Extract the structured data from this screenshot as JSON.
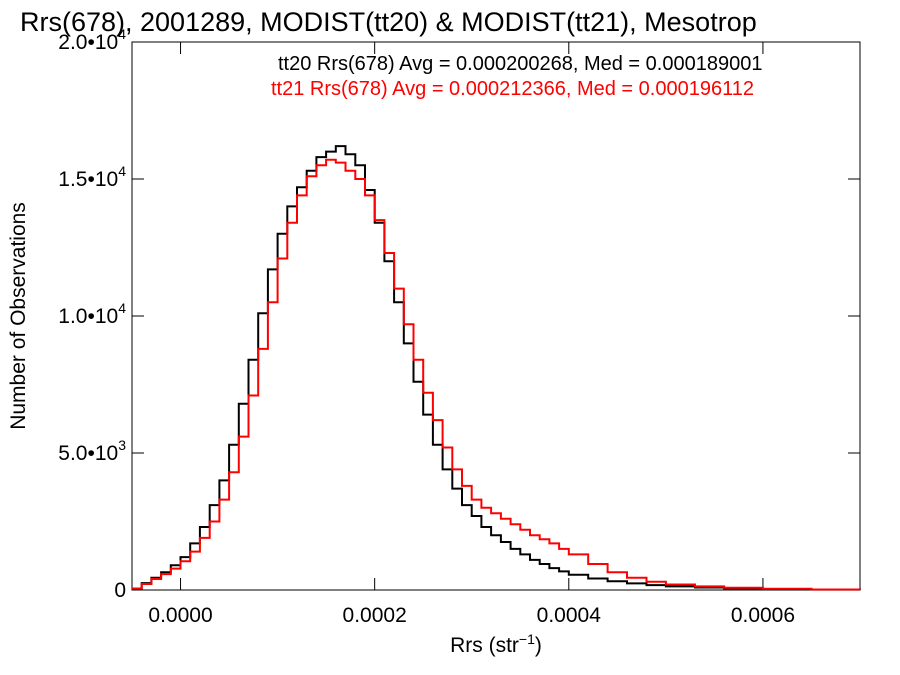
{
  "chart_data": {
    "type": "line",
    "step": true,
    "title": "Rrs(678), 2001289, MODIST(tt20) & MODIST(tt21), Mesotrop",
    "xlabel": "Rrs (str",
    "xlabel_sup": "−1",
    "xlabel_close": ")",
    "ylabel": "Number of Observations",
    "xlim": [
      -5e-05,
      0.0007
    ],
    "ylim": [
      0,
      20000
    ],
    "x_ticks": [
      {
        "value": 0.0,
        "label": "0.0000"
      },
      {
        "value": 0.0002,
        "label": "0.0002"
      },
      {
        "value": 0.0004,
        "label": "0.0004"
      },
      {
        "value": 0.0006,
        "label": "0.0006"
      }
    ],
    "y_ticks": [
      {
        "value": 0,
        "mant": "0",
        "exp": ""
      },
      {
        "value": 5000,
        "mant": "5.0•10",
        "exp": "3"
      },
      {
        "value": 10000,
        "mant": "1.0•10",
        "exp": "4"
      },
      {
        "value": 15000,
        "mant": "1.5•10",
        "exp": "4"
      },
      {
        "value": 20000,
        "mant": "2.0•10",
        "exp": "4"
      }
    ],
    "legend_placement": "top-right",
    "series": [
      {
        "name": "tt20",
        "label": "tt20 Rrs(678) Avg = 0.000200268, Med = 0.000189001",
        "color": "#000000",
        "x": [
          -5e-05,
          -4e-05,
          -3e-05,
          -2e-05,
          -1e-05,
          0.0,
          1e-05,
          2e-05,
          3e-05,
          4e-05,
          5e-05,
          6e-05,
          7e-05,
          8e-05,
          9e-05,
          0.0001,
          0.00011,
          0.00012,
          0.00013,
          0.00014,
          0.00015,
          0.00016,
          0.00017,
          0.00018,
          0.00019,
          0.0002,
          0.00021,
          0.00022,
          0.00023,
          0.00024,
          0.00025,
          0.00026,
          0.00027,
          0.00028,
          0.00029,
          0.0003,
          0.00031,
          0.00032,
          0.00033,
          0.00034,
          0.00035,
          0.00036,
          0.00037,
          0.00038,
          0.00039,
          0.0004,
          0.00042,
          0.00044,
          0.00046,
          0.00048,
          0.0005,
          0.00053,
          0.00056,
          0.0006,
          0.00065,
          0.0007
        ],
        "values": [
          50,
          250,
          450,
          650,
          900,
          1200,
          1700,
          2300,
          3100,
          4000,
          5300,
          6800,
          8400,
          10100,
          11700,
          13000,
          14000,
          14700,
          15300,
          15800,
          16000,
          16200,
          15900,
          15500,
          14600,
          13400,
          12000,
          10500,
          9000,
          7600,
          6400,
          5300,
          4400,
          3700,
          3100,
          2700,
          2300,
          2000,
          1750,
          1500,
          1300,
          1100,
          950,
          800,
          680,
          560,
          420,
          320,
          240,
          180,
          130,
          90,
          60,
          35,
          15,
          5
        ]
      },
      {
        "name": "tt21",
        "label": "tt21 Rrs(678) Avg = 0.000212366, Med = 0.000196112",
        "color": "#ff0000",
        "x": [
          -5e-05,
          -4e-05,
          -3e-05,
          -2e-05,
          -1e-05,
          0.0,
          1e-05,
          2e-05,
          3e-05,
          4e-05,
          5e-05,
          6e-05,
          7e-05,
          8e-05,
          9e-05,
          0.0001,
          0.00011,
          0.00012,
          0.00013,
          0.00014,
          0.00015,
          0.00016,
          0.00017,
          0.00018,
          0.00019,
          0.0002,
          0.00021,
          0.00022,
          0.00023,
          0.00024,
          0.00025,
          0.00026,
          0.00027,
          0.00028,
          0.00029,
          0.0003,
          0.00031,
          0.00032,
          0.00033,
          0.00034,
          0.00035,
          0.00036,
          0.00037,
          0.00038,
          0.00039,
          0.0004,
          0.00042,
          0.00044,
          0.00046,
          0.00048,
          0.0005,
          0.00053,
          0.00056,
          0.0006,
          0.00065,
          0.0007
        ],
        "values": [
          50,
          220,
          400,
          580,
          780,
          1050,
          1400,
          1900,
          2500,
          3300,
          4300,
          5600,
          7100,
          8800,
          10500,
          12100,
          13400,
          14400,
          15100,
          15500,
          15700,
          15600,
          15300,
          15000,
          14400,
          13500,
          12300,
          11000,
          9700,
          8400,
          7200,
          6200,
          5200,
          4400,
          3800,
          3300,
          3000,
          2800,
          2600,
          2400,
          2200,
          2000,
          1850,
          1700,
          1500,
          1300,
          950,
          650,
          450,
          300,
          200,
          130,
          80,
          45,
          20,
          8
        ]
      }
    ]
  }
}
